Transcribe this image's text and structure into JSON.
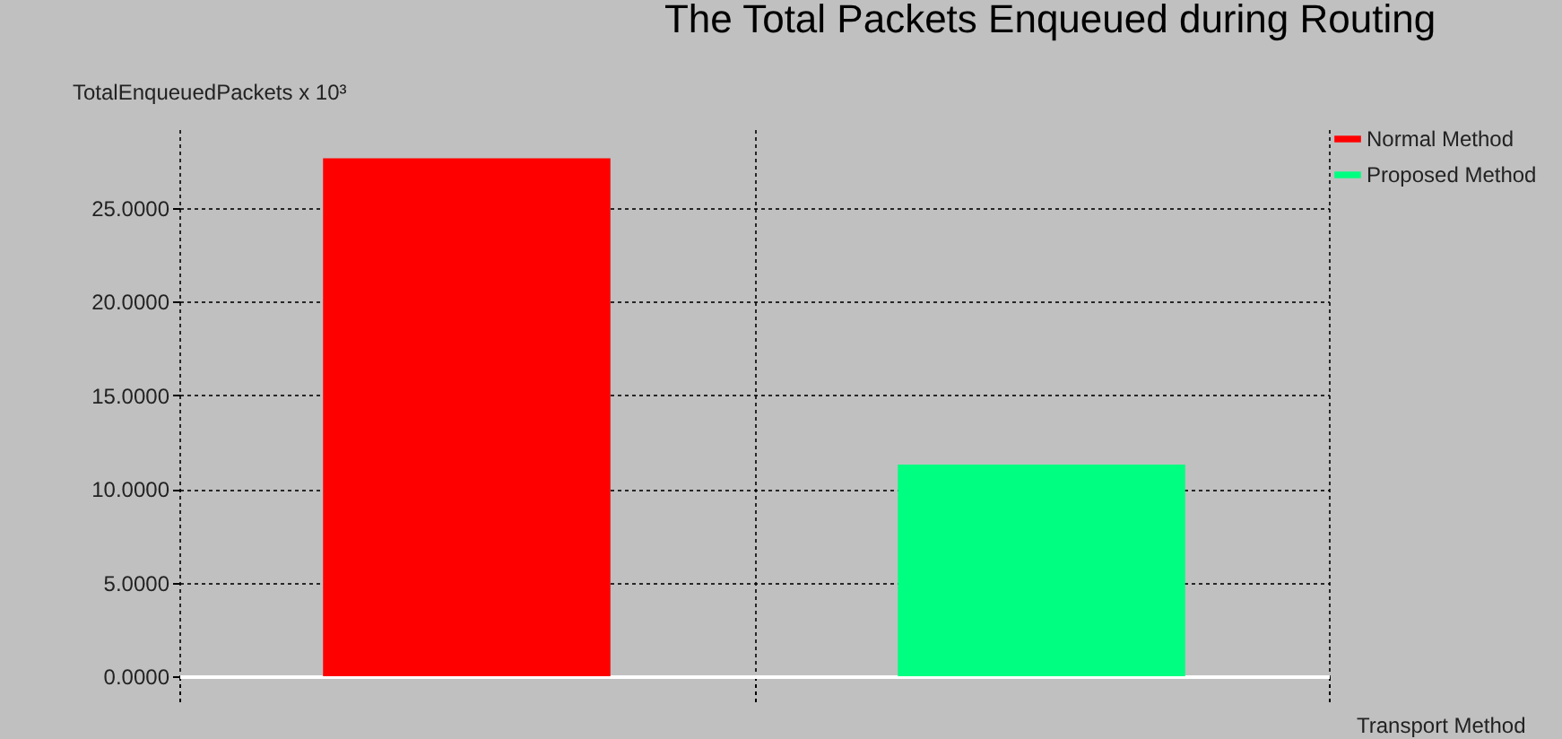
{
  "chart_data": {
    "type": "bar",
    "title": "The Total Packets Enqueued during Routing",
    "xlabel": "Transport Method",
    "ylabel": "TotalEnqueuedPackets x 10³",
    "categories": [
      null,
      null
    ],
    "series": [
      {
        "name": "Normal Method",
        "color": "#ff0000",
        "values": [
          27.65,
          null
        ]
      },
      {
        "name": "Proposed Method",
        "color": "#00ff80",
        "values": [
          null,
          11.3
        ]
      }
    ],
    "ylim": [
      0,
      29.2
    ],
    "yticks": [
      {
        "value": 0,
        "label": "0.0000"
      },
      {
        "value": 5,
        "label": "5.0000"
      },
      {
        "value": 10,
        "label": "10.0000"
      },
      {
        "value": 15,
        "label": "15.0000"
      },
      {
        "value": 20,
        "label": "20.0000"
      },
      {
        "value": 25,
        "label": "25.0000"
      }
    ],
    "tick_labels": "y",
    "grid": true,
    "legend": "top right"
  }
}
